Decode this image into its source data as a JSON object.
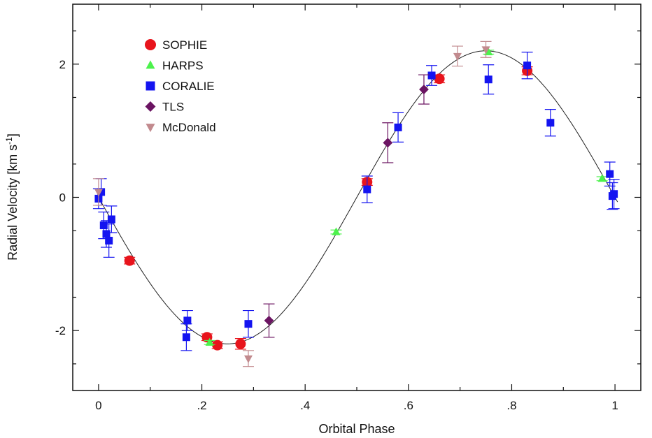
{
  "chart_data": {
    "type": "scatter",
    "xlabel": "Orbital Phase",
    "ylabel": "Radial Velocity [km s",
    "ylabel_superscript": "-1",
    "ylabel_suffix": "]",
    "xlim": [
      -0.05,
      1.05
    ],
    "ylim": [
      -2.9,
      2.9
    ],
    "x_ticks": [
      0,
      0.2,
      0.4,
      0.6,
      0.8,
      1
    ],
    "x_tick_labels": [
      "0",
      ".2",
      ".4",
      ".6",
      ".8",
      "1"
    ],
    "y_ticks": [
      -2,
      0,
      2
    ],
    "y_tick_labels": [
      "-2",
      "0",
      "2"
    ],
    "legend_position": "top-left",
    "model": {
      "type": "orbit-fit",
      "amplitude": 2.2,
      "peak_phase": 0.75,
      "min_phase": 0.25
    },
    "series": [
      {
        "name": "SOPHIE",
        "marker": "circle",
        "color": "#e8141c",
        "points": [
          {
            "x": 0.06,
            "y": -0.95,
            "err": 0.05
          },
          {
            "x": 0.21,
            "y": -2.1,
            "err": 0.05
          },
          {
            "x": 0.23,
            "y": -2.22,
            "err": 0.05
          },
          {
            "x": 0.275,
            "y": -2.2,
            "err": 0.08
          },
          {
            "x": 0.52,
            "y": 0.23,
            "err": 0.05
          },
          {
            "x": 0.66,
            "y": 1.78,
            "err": 0.06
          },
          {
            "x": 0.83,
            "y": 1.9,
            "err": 0.06
          }
        ]
      },
      {
        "name": "HARPS",
        "marker": "triangle-up",
        "color": "#4cf24c",
        "points": [
          {
            "x": 0.215,
            "y": -2.18,
            "err": 0.03
          },
          {
            "x": 0.46,
            "y": -0.52,
            "err": 0.03
          },
          {
            "x": 0.755,
            "y": 2.18,
            "err": 0.03
          },
          {
            "x": 0.975,
            "y": 0.28,
            "err": 0.03
          }
        ]
      },
      {
        "name": "CORALIE",
        "marker": "square",
        "color": "#1414f0",
        "points": [
          {
            "x": 0.0,
            "y": -0.02,
            "err": 0.15
          },
          {
            "x": 0.005,
            "y": 0.08,
            "err": 0.2
          },
          {
            "x": 0.01,
            "y": -0.42,
            "err": 0.2
          },
          {
            "x": 0.015,
            "y": -0.55,
            "err": 0.2
          },
          {
            "x": 0.02,
            "y": -0.65,
            "err": 0.25
          },
          {
            "x": 0.025,
            "y": -0.33,
            "err": 0.2
          },
          {
            "x": 0.17,
            "y": -2.1,
            "err": 0.2
          },
          {
            "x": 0.172,
            "y": -1.85,
            "err": 0.15
          },
          {
            "x": 0.29,
            "y": -1.9,
            "err": 0.2
          },
          {
            "x": 0.52,
            "y": 0.12,
            "err": 0.2
          },
          {
            "x": 0.58,
            "y": 1.05,
            "err": 0.22
          },
          {
            "x": 0.645,
            "y": 1.83,
            "err": 0.15
          },
          {
            "x": 0.755,
            "y": 1.77,
            "err": 0.22
          },
          {
            "x": 0.83,
            "y": 1.98,
            "err": 0.2
          },
          {
            "x": 0.875,
            "y": 1.12,
            "err": 0.2
          },
          {
            "x": 0.99,
            "y": 0.35,
            "err": 0.18
          },
          {
            "x": 0.995,
            "y": 0.02,
            "err": 0.2
          },
          {
            "x": 0.998,
            "y": 0.05,
            "err": 0.22
          }
        ]
      },
      {
        "name": "TLS",
        "marker": "diamond",
        "color": "#6b1462",
        "points": [
          {
            "x": 0.33,
            "y": -1.85,
            "err": 0.25
          },
          {
            "x": 0.56,
            "y": 0.82,
            "err": 0.3
          },
          {
            "x": 0.63,
            "y": 1.62,
            "err": 0.22
          }
        ]
      },
      {
        "name": "McDonald",
        "marker": "triangle-down",
        "color": "#c28a8e",
        "points": [
          {
            "x": 0.0,
            "y": 0.08,
            "err": 0.2
          },
          {
            "x": 0.29,
            "y": -2.42,
            "err": 0.12
          },
          {
            "x": 0.695,
            "y": 2.12,
            "err": 0.15
          },
          {
            "x": 0.75,
            "y": 2.22,
            "err": 0.12
          }
        ]
      }
    ]
  }
}
